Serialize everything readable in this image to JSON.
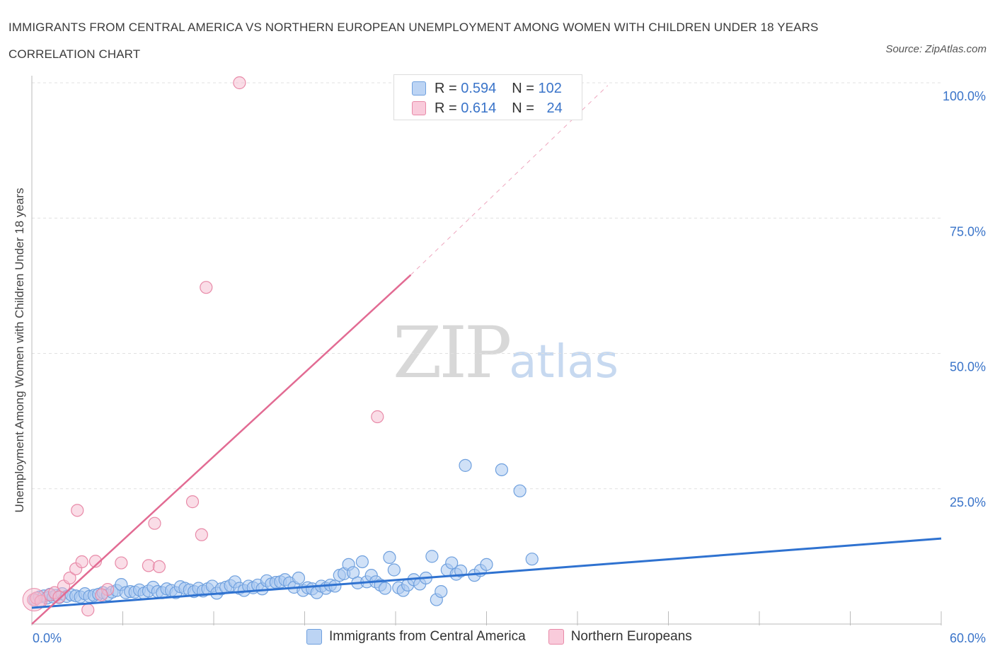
{
  "title": "IMMIGRANTS FROM CENTRAL AMERICA VS NORTHERN EUROPEAN UNEMPLOYMENT AMONG WOMEN WITH CHILDREN UNDER 18 YEARS CORRELATION CHART",
  "source": "Source: ZipAtlas.com",
  "watermark": {
    "zip": "ZIP",
    "atlas": "atlas"
  },
  "legend_top": [
    {
      "r_label": "R = ",
      "r_value": "0.594",
      "n_label": "N = ",
      "n_value": "102"
    },
    {
      "r_label": "R = ",
      "r_value": "0.614",
      "n_label": "N = ",
      "n_value": "24"
    }
  ],
  "colors": {
    "blue_fill": "#a9c8f0",
    "blue_stroke": "#6fa0de",
    "blue_line": "#2f72d0",
    "pink_fill": "#f6bcd0",
    "pink_stroke": "#e88aa8",
    "pink_line": "#e26b93",
    "grid": "#e0e0e0",
    "tick_text": "#3a74c9"
  },
  "chart_data": {
    "type": "scatter",
    "title": "IMMIGRANTS FROM CENTRAL AMERICA VS NORTHERN EUROPEAN UNEMPLOYMENT AMONG WOMEN WITH CHILDREN UNDER 18 YEARS CORRELATION CHART",
    "xlabel": "",
    "ylabel": "Unemployment Among Women with Children Under 18 years",
    "xlim": [
      0,
      60
    ],
    "ylim": [
      0,
      100
    ],
    "x_tick_labels": [
      "0.0%",
      "60.0%"
    ],
    "y_tick_labels": [
      "25.0%",
      "50.0%",
      "75.0%",
      "100.0%"
    ],
    "y_ticks": [
      25,
      50,
      75,
      100
    ],
    "grid": true,
    "legend": [
      "Immigrants from Central America",
      "Northern Europeans"
    ],
    "series": [
      {
        "name": "Immigrants from Central America",
        "R": 0.594,
        "N": 102,
        "trend": {
          "x": [
            0,
            60
          ],
          "y": [
            3.0,
            15.8
          ]
        },
        "points": [
          [
            0.2,
            4.5
          ],
          [
            0.5,
            5.0
          ],
          [
            0.8,
            5.2
          ],
          [
            1.0,
            4.8
          ],
          [
            1.2,
            5.5
          ],
          [
            1.4,
            5.0
          ],
          [
            1.6,
            5.3
          ],
          [
            1.8,
            4.9
          ],
          [
            2.0,
            5.6
          ],
          [
            2.3,
            5.1
          ],
          [
            2.6,
            5.4
          ],
          [
            2.9,
            5.2
          ],
          [
            3.2,
            5.0
          ],
          [
            3.5,
            5.6
          ],
          [
            3.8,
            5.1
          ],
          [
            4.1,
            5.3
          ],
          [
            4.4,
            5.5
          ],
          [
            4.7,
            5.8
          ],
          [
            5.0,
            5.4
          ],
          [
            5.3,
            5.9
          ],
          [
            5.6,
            6.2
          ],
          [
            5.9,
            7.3
          ],
          [
            6.2,
            5.8
          ],
          [
            6.5,
            6.0
          ],
          [
            6.8,
            5.9
          ],
          [
            7.1,
            6.3
          ],
          [
            7.4,
            5.7
          ],
          [
            7.7,
            6.1
          ],
          [
            8.0,
            6.8
          ],
          [
            8.3,
            6.0
          ],
          [
            8.6,
            5.8
          ],
          [
            8.9,
            6.5
          ],
          [
            9.2,
            6.2
          ],
          [
            9.5,
            5.8
          ],
          [
            9.8,
            6.9
          ],
          [
            10.1,
            6.6
          ],
          [
            10.4,
            6.3
          ],
          [
            10.7,
            6.0
          ],
          [
            11.0,
            6.6
          ],
          [
            11.3,
            6.1
          ],
          [
            11.6,
            6.5
          ],
          [
            11.9,
            7.0
          ],
          [
            12.2,
            5.7
          ],
          [
            12.5,
            6.5
          ],
          [
            12.8,
            6.8
          ],
          [
            13.1,
            7.1
          ],
          [
            13.4,
            7.8
          ],
          [
            13.7,
            6.6
          ],
          [
            14.0,
            6.2
          ],
          [
            14.3,
            7.0
          ],
          [
            14.6,
            6.7
          ],
          [
            14.9,
            7.2
          ],
          [
            15.2,
            6.5
          ],
          [
            15.5,
            8.0
          ],
          [
            15.8,
            7.4
          ],
          [
            16.1,
            7.7
          ],
          [
            16.4,
            7.8
          ],
          [
            16.7,
            8.2
          ],
          [
            17.0,
            7.6
          ],
          [
            17.3,
            6.8
          ],
          [
            17.6,
            8.5
          ],
          [
            17.9,
            6.2
          ],
          [
            18.2,
            6.7
          ],
          [
            18.5,
            6.5
          ],
          [
            18.8,
            5.8
          ],
          [
            19.1,
            7.0
          ],
          [
            19.4,
            6.6
          ],
          [
            19.7,
            7.2
          ],
          [
            20.0,
            7.0
          ],
          [
            20.3,
            9.0
          ],
          [
            20.6,
            9.3
          ],
          [
            20.9,
            11.0
          ],
          [
            21.2,
            9.5
          ],
          [
            21.5,
            7.6
          ],
          [
            21.8,
            11.5
          ],
          [
            22.1,
            7.8
          ],
          [
            22.4,
            9.0
          ],
          [
            22.7,
            7.8
          ],
          [
            23.0,
            7.2
          ],
          [
            23.3,
            6.6
          ],
          [
            23.6,
            12.3
          ],
          [
            23.9,
            10.0
          ],
          [
            24.2,
            6.7
          ],
          [
            24.5,
            6.2
          ],
          [
            24.8,
            7.2
          ],
          [
            25.2,
            8.2
          ],
          [
            25.6,
            7.4
          ],
          [
            26.0,
            8.5
          ],
          [
            26.4,
            12.5
          ],
          [
            26.7,
            4.5
          ],
          [
            27.0,
            6.0
          ],
          [
            27.4,
            10.0
          ],
          [
            27.7,
            11.3
          ],
          [
            28.0,
            9.2
          ],
          [
            28.3,
            9.8
          ],
          [
            28.6,
            29.3
          ],
          [
            29.2,
            9.0
          ],
          [
            29.6,
            9.9
          ],
          [
            30.0,
            11.0
          ],
          [
            31.0,
            28.5
          ],
          [
            32.2,
            24.6
          ],
          [
            33.0,
            12.0
          ]
        ]
      },
      {
        "name": "Northern Europeans",
        "R": 0.614,
        "N": 24,
        "trend": {
          "x": [
            0,
            25
          ],
          "y": [
            0,
            64.5
          ]
        },
        "trend_extension": {
          "x": [
            25,
            38
          ],
          "y": [
            64.5,
            99.5
          ]
        },
        "points": [
          [
            0.1,
            4.5
          ],
          [
            0.3,
            4.8
          ],
          [
            0.6,
            4.2
          ],
          [
            1.2,
            5.4
          ],
          [
            1.5,
            5.8
          ],
          [
            1.8,
            5.0
          ],
          [
            2.1,
            7.0
          ],
          [
            2.5,
            8.5
          ],
          [
            2.9,
            10.2
          ],
          [
            3.3,
            11.5
          ],
          [
            3.7,
            2.6
          ],
          [
            4.2,
            11.6
          ],
          [
            5.0,
            6.4
          ],
          [
            7.7,
            10.8
          ],
          [
            8.1,
            18.6
          ],
          [
            8.4,
            10.6
          ],
          [
            5.9,
            11.3
          ],
          [
            4.6,
            5.4
          ],
          [
            10.6,
            22.6
          ],
          [
            11.2,
            16.5
          ],
          [
            13.7,
            100
          ],
          [
            11.5,
            62.2
          ],
          [
            22.8,
            38.3
          ],
          [
            3.0,
            21.0
          ]
        ]
      }
    ]
  },
  "axis": {
    "x_left_label": "0.0%",
    "x_right_label": "60.0%",
    "y_labels": [
      "100.0%",
      "75.0%",
      "50.0%",
      "25.0%"
    ],
    "y_axis_title": "Unemployment Among Women with Children Under 18 years"
  }
}
